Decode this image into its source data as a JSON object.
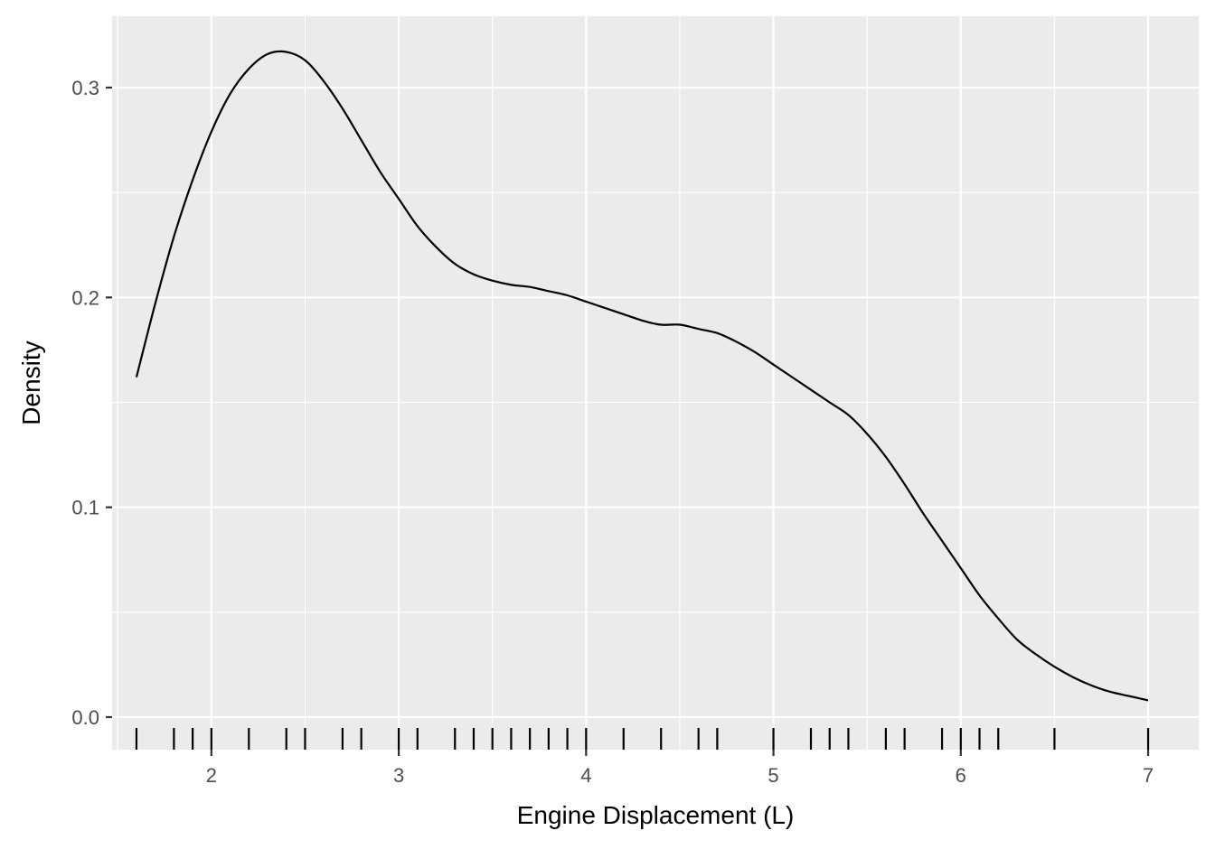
{
  "chart_data": {
    "type": "line",
    "title": "",
    "xlabel": "Engine Displacement (L)",
    "ylabel": "Density",
    "xlim": [
      1.47,
      7.27
    ],
    "ylim": [
      -0.0155,
      0.334
    ],
    "x_ticks": [
      {
        "value": 2,
        "label": "2"
      },
      {
        "value": 3,
        "label": "3"
      },
      {
        "value": 4,
        "label": "4"
      },
      {
        "value": 5,
        "label": "5"
      },
      {
        "value": 6,
        "label": "6"
      },
      {
        "value": 7,
        "label": "7"
      }
    ],
    "y_ticks": [
      {
        "value": 0.0,
        "label": "0.0"
      },
      {
        "value": 0.1,
        "label": "0.1"
      },
      {
        "value": 0.2,
        "label": "0.2"
      },
      {
        "value": 0.3,
        "label": "0.3"
      }
    ],
    "grid": true,
    "series": [
      {
        "x": [
          1.6,
          1.7,
          1.8,
          1.9,
          2.0,
          2.1,
          2.2,
          2.3,
          2.4,
          2.5,
          2.6,
          2.7,
          2.8,
          2.9,
          3.0,
          3.1,
          3.2,
          3.3,
          3.4,
          3.5,
          3.6,
          3.7,
          3.8,
          3.9,
          4.0,
          4.1,
          4.2,
          4.3,
          4.4,
          4.5,
          4.6,
          4.7,
          4.8,
          4.9,
          5.0,
          5.1,
          5.2,
          5.3,
          5.4,
          5.5,
          5.6,
          5.7,
          5.8,
          5.9,
          6.0,
          6.1,
          6.2,
          6.3,
          6.4,
          6.5,
          6.6,
          6.7,
          6.8,
          6.9,
          7.0
        ],
        "y": [
          0.162,
          0.197,
          0.229,
          0.256,
          0.279,
          0.297,
          0.309,
          0.316,
          0.317,
          0.313,
          0.303,
          0.29,
          0.275,
          0.26,
          0.247,
          0.234,
          0.224,
          0.216,
          0.211,
          0.208,
          0.206,
          0.205,
          0.203,
          0.201,
          0.198,
          0.195,
          0.192,
          0.189,
          0.187,
          0.187,
          0.185,
          0.183,
          0.179,
          0.174,
          0.168,
          0.162,
          0.156,
          0.15,
          0.144,
          0.135,
          0.124,
          0.111,
          0.097,
          0.084,
          0.071,
          0.058,
          0.047,
          0.037,
          0.03,
          0.024,
          0.019,
          0.015,
          0.012,
          0.01,
          0.008
        ]
      }
    ],
    "rug": [
      1.6,
      1.8,
      1.9,
      2.0,
      2.2,
      2.4,
      2.5,
      2.7,
      2.8,
      3.0,
      3.1,
      3.3,
      3.4,
      3.5,
      3.6,
      3.7,
      3.8,
      3.9,
      4.0,
      4.2,
      4.4,
      4.6,
      4.7,
      5.0,
      5.2,
      5.3,
      5.4,
      5.6,
      5.7,
      5.9,
      6.0,
      6.1,
      6.2,
      6.5,
      7.0
    ],
    "colors": {
      "panel": "#ebebeb",
      "grid": "#ffffff",
      "line": "#000000",
      "tick_text": "#4d4d4d",
      "tick_mark": "#333333"
    }
  }
}
